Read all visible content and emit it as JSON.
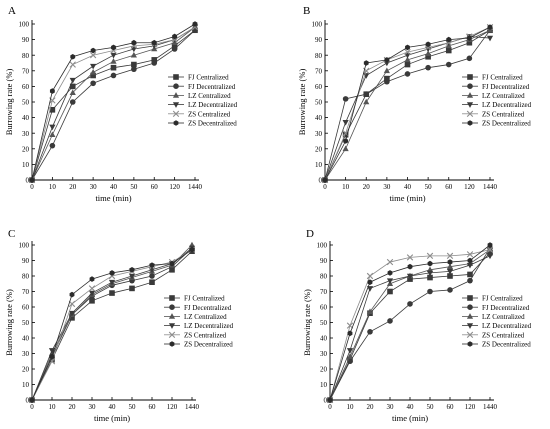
{
  "chart_data": [
    {
      "panel": "A",
      "type": "line",
      "xlabel": "time (min)",
      "ylabel": "Burrowing rate (%)",
      "categories": [
        "0",
        "10",
        "20",
        "30",
        "40",
        "50",
        "60",
        "120",
        "1440"
      ],
      "ylim": [
        0,
        100
      ],
      "yticks": [
        0,
        10,
        20,
        30,
        40,
        50,
        60,
        70,
        80,
        90,
        100
      ],
      "legend_position": "right",
      "series": [
        {
          "name": "FJ Centralized",
          "marker": "square",
          "values": [
            0,
            45,
            60,
            67,
            72,
            74,
            77,
            86,
            96
          ]
        },
        {
          "name": "FJ Decentralized",
          "marker": "circle",
          "values": [
            0,
            22,
            50,
            62,
            67,
            71,
            75,
            84,
            96
          ]
        },
        {
          "name": "LZ Centralized",
          "marker": "triangle-up",
          "values": [
            0,
            29,
            56,
            69,
            76,
            80,
            84,
            88,
            98
          ]
        },
        {
          "name": "LZ Decentralized",
          "marker": "triangle-down",
          "values": [
            0,
            34,
            64,
            73,
            80,
            84,
            86,
            90,
            98
          ]
        },
        {
          "name": "ZS Centralized",
          "marker": "x",
          "values": [
            0,
            51,
            74,
            80,
            83,
            86,
            87,
            90,
            98
          ]
        },
        {
          "name": "ZS Decentralized",
          "marker": "hexagon",
          "values": [
            0,
            57,
            79,
            83,
            85,
            88,
            88,
            92,
            100
          ]
        }
      ]
    },
    {
      "panel": "B",
      "type": "line",
      "xlabel": "time (min)",
      "ylabel": "Burrowing rate (%)",
      "categories": [
        "0",
        "10",
        "20",
        "30",
        "40",
        "50",
        "60",
        "120",
        "1440"
      ],
      "ylim": [
        0,
        100
      ],
      "yticks": [
        0,
        10,
        20,
        30,
        40,
        50,
        60,
        70,
        80,
        90,
        100
      ],
      "legend_position": "right",
      "series": [
        {
          "name": "FJ Centralized",
          "marker": "square",
          "values": [
            0,
            29,
            55,
            65,
            74,
            79,
            83,
            88,
            96
          ]
        },
        {
          "name": "FJ Decentralized",
          "marker": "circle",
          "values": [
            0,
            52,
            55,
            63,
            68,
            72,
            74,
            78,
            96
          ]
        },
        {
          "name": "LZ Centralized",
          "marker": "triangle-up",
          "values": [
            0,
            20,
            50,
            70,
            77,
            81,
            86,
            90,
            96
          ]
        },
        {
          "name": "LZ Decentralized",
          "marker": "triangle-down",
          "values": [
            0,
            37,
            67,
            75,
            80,
            84,
            88,
            92,
            91
          ]
        },
        {
          "name": "ZS Centralized",
          "marker": "x",
          "values": [
            0,
            30,
            70,
            77,
            82,
            85,
            88,
            92,
            98
          ]
        },
        {
          "name": "ZS Decentralized",
          "marker": "hexagon",
          "values": [
            0,
            25,
            75,
            77,
            85,
            87,
            90,
            91,
            98
          ]
        }
      ]
    },
    {
      "panel": "C",
      "type": "line",
      "xlabel": "time (min)",
      "ylabel": "Burrowing rate (%)",
      "categories": [
        "0",
        "10",
        "20",
        "30",
        "40",
        "50",
        "60",
        "120",
        "1440"
      ],
      "ylim": [
        0,
        100
      ],
      "yticks": [
        0,
        10,
        20,
        30,
        40,
        50,
        60,
        70,
        80,
        90,
        100
      ],
      "legend_position": "right",
      "series": [
        {
          "name": "FJ Centralized",
          "marker": "square",
          "values": [
            0,
            26,
            53,
            64,
            69,
            72,
            76,
            84,
            96
          ]
        },
        {
          "name": "FJ Decentralized",
          "marker": "circle",
          "values": [
            0,
            28,
            55,
            67,
            74,
            77,
            80,
            86,
            98
          ]
        },
        {
          "name": "LZ Centralized",
          "marker": "triangle-up",
          "values": [
            0,
            30,
            55,
            68,
            75,
            79,
            83,
            87,
            100
          ]
        },
        {
          "name": "LZ Decentralized",
          "marker": "triangle-down",
          "values": [
            0,
            32,
            56,
            69,
            76,
            80,
            84,
            88,
            98
          ]
        },
        {
          "name": "ZS Centralized",
          "marker": "x",
          "values": [
            0,
            25,
            62,
            72,
            80,
            83,
            86,
            89,
            97
          ]
        },
        {
          "name": "ZS Decentralized",
          "marker": "hexagon",
          "values": [
            0,
            28,
            68,
            78,
            82,
            84,
            87,
            88,
            97
          ]
        }
      ]
    },
    {
      "panel": "D",
      "type": "line",
      "xlabel": "time (min)",
      "ylabel": "Burrowing rate (%)",
      "categories": [
        "0",
        "10",
        "20",
        "30",
        "40",
        "50",
        "60",
        "120",
        "1440"
      ],
      "ylim": [
        0,
        100
      ],
      "yticks": [
        0,
        10,
        20,
        30,
        40,
        50,
        60,
        70,
        80,
        90,
        100
      ],
      "legend_position": "right",
      "series": [
        {
          "name": "FJ Centralized",
          "marker": "square",
          "values": [
            0,
            26,
            56,
            70,
            78,
            79,
            80,
            81,
            95
          ]
        },
        {
          "name": "FJ Decentralized",
          "marker": "circle",
          "values": [
            0,
            25,
            44,
            51,
            62,
            70,
            71,
            77,
            98
          ]
        },
        {
          "name": "LZ Centralized",
          "marker": "triangle-up",
          "values": [
            0,
            28,
            57,
            75,
            80,
            84,
            86,
            88,
            97
          ]
        },
        {
          "name": "LZ Decentralized",
          "marker": "triangle-down",
          "values": [
            0,
            32,
            72,
            77,
            80,
            82,
            83,
            87,
            93
          ]
        },
        {
          "name": "ZS Centralized",
          "marker": "x",
          "values": [
            0,
            48,
            80,
            89,
            92,
            93,
            93,
            94,
            97
          ]
        },
        {
          "name": "ZS Decentralized",
          "marker": "hexagon",
          "values": [
            0,
            43,
            76,
            82,
            86,
            88,
            89,
            90,
            100
          ]
        }
      ]
    }
  ]
}
